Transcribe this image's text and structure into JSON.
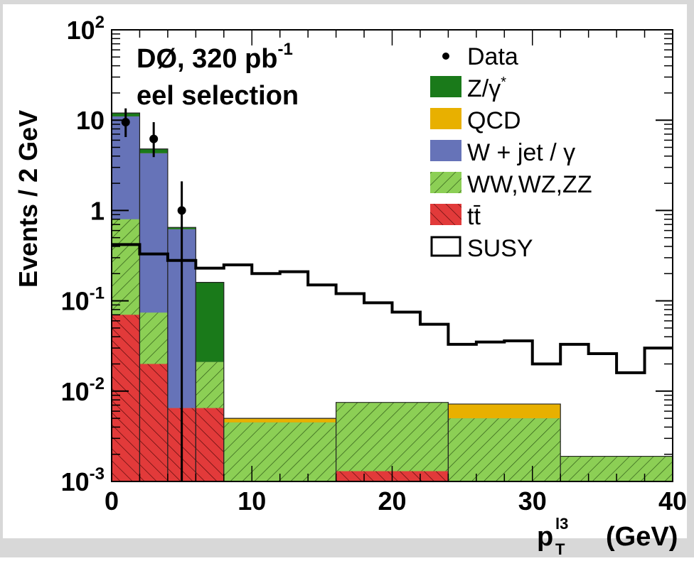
{
  "chart_data": {
    "type": "histogram",
    "scale": {
      "y": "log"
    },
    "title_lines": [
      "DØ, 320 pb",
      "eel selection"
    ],
    "title_superscript": "-1",
    "xlabel": {
      "main": "p",
      "sub": "T",
      "sup": "l3",
      "unit": "(GeV)"
    },
    "ylabel": "Events / 2 GeV",
    "xlim": [
      0,
      40
    ],
    "ylim": [
      0.001,
      100
    ],
    "x_ticks": [
      "0",
      "10",
      "20",
      "30",
      "40"
    ],
    "y_ticks": [
      {
        "value": 100,
        "base": "10",
        "exp": "2"
      },
      {
        "value": 10,
        "base": "10",
        "exp": ""
      },
      {
        "value": 1,
        "base": "1",
        "exp": ""
      },
      {
        "value": 0.1,
        "base": "10",
        "exp": "-1"
      },
      {
        "value": 0.01,
        "base": "10",
        "exp": "-2"
      },
      {
        "value": 0.001,
        "base": "10",
        "exp": "-3"
      }
    ],
    "stack_bins": [
      {
        "x0": 0,
        "x1": 2,
        "ttbar": 0.07,
        "diboson": 0.8,
        "wjet": 11.0,
        "qcd": 11.0,
        "zgamma": 12.0
      },
      {
        "x0": 2,
        "x1": 4,
        "ttbar": 0.02,
        "diboson": 0.074,
        "wjet": 4.3,
        "qcd": 4.3,
        "zgamma": 4.8
      },
      {
        "x0": 4,
        "x1": 6,
        "ttbar": 0.0065,
        "diboson": 0.0065,
        "wjet": 0.62,
        "qcd": 0.62,
        "zgamma": 0.65
      },
      {
        "x0": 6,
        "x1": 8,
        "ttbar": 0.0065,
        "diboson": 0.021,
        "wjet": 0.021,
        "qcd": 0.021,
        "zgamma": 0.16
      },
      {
        "x0": 8,
        "x1": 16,
        "ttbar": 0.001,
        "diboson": 0.0045,
        "wjet": 0.0045,
        "qcd": 0.005,
        "zgamma": 0.005
      },
      {
        "x0": 16,
        "x1": 24,
        "ttbar": 0.0013,
        "diboson": 0.0075,
        "wjet": 0.0075,
        "qcd": 0.0075,
        "zgamma": 0.0075
      },
      {
        "x0": 24,
        "x1": 32,
        "ttbar": 0.001,
        "diboson": 0.005,
        "wjet": 0.005,
        "qcd": 0.0072,
        "zgamma": 0.0072
      },
      {
        "x0": 32,
        "x1": 40,
        "ttbar": 0.001,
        "diboson": 0.0019,
        "wjet": 0.0019,
        "qcd": 0.0019,
        "zgamma": 0.0019
      }
    ],
    "susy": {
      "edges": [
        0,
        2,
        4,
        6,
        8,
        10,
        12,
        14,
        16,
        18,
        20,
        22,
        24,
        26,
        28,
        30,
        32,
        34,
        36,
        38,
        40
      ],
      "values": [
        0.42,
        0.33,
        0.28,
        0.23,
        0.25,
        0.2,
        0.21,
        0.15,
        0.12,
        0.095,
        0.075,
        0.055,
        0.033,
        0.035,
        0.036,
        0.02,
        0.033,
        0.026,
        0.016,
        0.03
      ]
    },
    "data_points": [
      {
        "x": 1,
        "y": 9.5,
        "ylo": 6.5,
        "yhi": 13.5
      },
      {
        "x": 3,
        "y": 6.2,
        "ylo": 3.9,
        "yhi": 9.5
      },
      {
        "x": 5,
        "y": 1.0,
        "ylo": 0.001,
        "yhi": 2.1
      }
    ],
    "legend": [
      {
        "key": "data",
        "label": "Data"
      },
      {
        "key": "zgamma",
        "label": "Z/γ",
        "sup": "*"
      },
      {
        "key": "qcd",
        "label": "QCD"
      },
      {
        "key": "wjet",
        "label": "W + jet / γ"
      },
      {
        "key": "diboson",
        "label": "WW,WZ,ZZ"
      },
      {
        "key": "ttbar",
        "label": "tt̄"
      },
      {
        "key": "susy",
        "label": "SUSY"
      }
    ],
    "legend_placement": "top-right",
    "colors": {
      "zgamma": "#1a7a1a",
      "qcd": "#e8b000",
      "wjet": "#6673b8",
      "diboson": "#8ccf55",
      "ttbar": "#e23a3a",
      "susy": "#000000",
      "data": "#000000",
      "frame_bg": "#d8d8d8"
    }
  }
}
